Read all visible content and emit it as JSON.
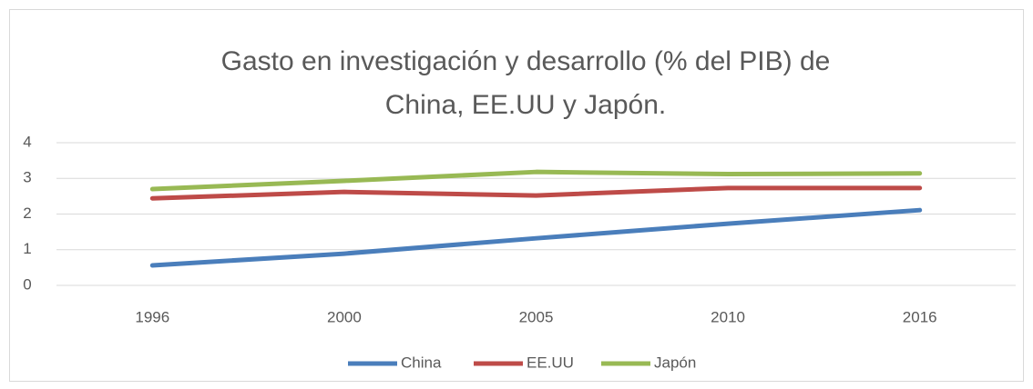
{
  "chart_data": {
    "type": "line",
    "title": "Gasto en investigación y desarrollo (% del PIB) de China, EE.UU y Japón.",
    "categories": [
      "1996",
      "2000",
      "2005",
      "2010",
      "2016"
    ],
    "series": [
      {
        "name": "China",
        "color": "#4a7ebb",
        "values": [
          0.56,
          0.89,
          1.32,
          1.73,
          2.11
        ]
      },
      {
        "name": "EE.UU",
        "color": "#be4b48",
        "values": [
          2.44,
          2.62,
          2.52,
          2.73,
          2.73
        ]
      },
      {
        "name": "Japón",
        "color": "#98b954",
        "values": [
          2.7,
          2.93,
          3.18,
          3.12,
          3.14
        ]
      }
    ],
    "ylim": [
      0,
      4
    ],
    "yticks": [
      0,
      1,
      2,
      3,
      4
    ],
    "grid": true,
    "legend": "bottom"
  }
}
